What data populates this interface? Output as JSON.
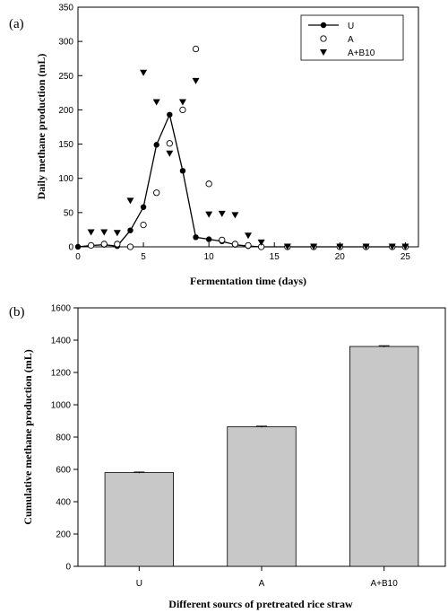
{
  "chart_data": [
    {
      "panel_label": "(a)",
      "type": "line",
      "xlabel": "Fermentation time (days)",
      "ylabel": "Daily methane production (mL)",
      "xlim": [
        0,
        26
      ],
      "ylim": [
        0,
        350
      ],
      "xticks": [
        0,
        5,
        10,
        15,
        20,
        25
      ],
      "yticks": [
        0,
        50,
        100,
        150,
        200,
        250,
        300,
        350
      ],
      "grid": false,
      "legend": "top-right",
      "series": [
        {
          "name": "U",
          "marker": "filled-circle",
          "line": true,
          "points": [
            [
              0,
              0
            ],
            [
              1,
              2
            ],
            [
              2,
              3
            ],
            [
              3,
              1
            ],
            [
              4,
              24
            ],
            [
              5,
              58
            ],
            [
              6,
              149
            ],
            [
              7,
              193
            ],
            [
              8,
              111
            ],
            [
              9,
              14
            ],
            [
              10,
              11
            ],
            [
              11,
              8
            ],
            [
              12,
              3
            ],
            [
              13,
              1
            ],
            [
              14,
              0
            ],
            [
              16,
              0
            ],
            [
              18,
              0
            ],
            [
              20,
              0
            ],
            [
              22,
              0
            ],
            [
              24,
              0
            ],
            [
              25,
              0
            ]
          ]
        },
        {
          "name": "A",
          "marker": "open-circle",
          "line": false,
          "points": [
            [
              1,
              2
            ],
            [
              2,
              4
            ],
            [
              3,
              4
            ],
            [
              4,
              0
            ],
            [
              5,
              32
            ],
            [
              6,
              79
            ],
            [
              7,
              151
            ],
            [
              8,
              200
            ],
            [
              9,
              289
            ],
            [
              10,
              92
            ],
            [
              11,
              10
            ],
            [
              12,
              4
            ],
            [
              13,
              2
            ],
            [
              14,
              0
            ],
            [
              16,
              0
            ],
            [
              18,
              0
            ],
            [
              20,
              0
            ],
            [
              22,
              0
            ],
            [
              24,
              0
            ],
            [
              25,
              0
            ]
          ]
        },
        {
          "name": "A+B10",
          "marker": "filled-triangle-down",
          "line": false,
          "points": [
            [
              1,
              21
            ],
            [
              2,
              21
            ],
            [
              3,
              20
            ],
            [
              4,
              67
            ],
            [
              5,
              254
            ],
            [
              6,
              211
            ],
            [
              7,
              136
            ],
            [
              8,
              211
            ],
            [
              9,
              242
            ],
            [
              10,
              47
            ],
            [
              11,
              48
            ],
            [
              12,
              46
            ],
            [
              13,
              16
            ],
            [
              14,
              6
            ],
            [
              16,
              0
            ],
            [
              18,
              0
            ],
            [
              20,
              0
            ],
            [
              22,
              0
            ],
            [
              24,
              0
            ],
            [
              25,
              0
            ]
          ]
        }
      ]
    },
    {
      "panel_label": "(b)",
      "type": "bar",
      "xlabel": "Different sourcs of pretreated rice straw",
      "ylabel": "Cumulative methane production (mL)",
      "categories": [
        "U",
        "A",
        "A+B10"
      ],
      "values": [
        580,
        864,
        1361
      ],
      "errors": [
        4,
        4,
        5
      ],
      "ylim": [
        0,
        1600
      ],
      "yticks": [
        0,
        200,
        400,
        600,
        800,
        1000,
        1200,
        1400,
        1600
      ],
      "bar_color": "#c8c8c8",
      "grid": false
    }
  ]
}
